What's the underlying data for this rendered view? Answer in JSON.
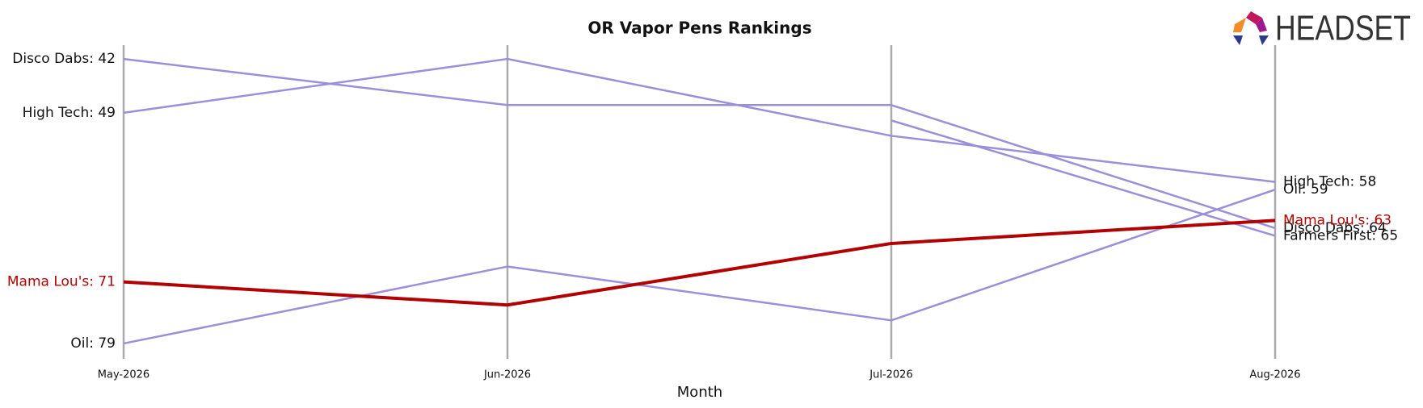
{
  "chart_data": {
    "type": "bump",
    "title": "OR Vapor Pens Rankings",
    "xlabel": "Month",
    "logo_text": "HEADSET",
    "categories": [
      "May-2026",
      "Jun-2026",
      "Jul-2026",
      "Aug-2026"
    ],
    "ylim": [
      40,
      81
    ],
    "inverted": true,
    "grid": true,
    "series": [
      {
        "name": "Disco Dabs",
        "color": "#9b8fd9",
        "values": [
          42,
          48,
          48,
          64
        ],
        "start_label": "Disco Dabs: 42",
        "end_label": "Disco Dabs: 64"
      },
      {
        "name": "High Tech",
        "color": "#9b8fd9",
        "values": [
          49,
          42,
          52,
          58
        ],
        "start_label": "High Tech: 49",
        "end_label": "High Tech: 58"
      },
      {
        "name": "Farmers First",
        "color": "#9b8fd9",
        "values": [
          null,
          null,
          50,
          65
        ],
        "end_label": "Farmers First: 65"
      },
      {
        "name": "Oil",
        "color": "#9b8fd9",
        "values": [
          79,
          69,
          76,
          59
        ],
        "start_label": "Oil: 79",
        "end_label": "Oil: 59"
      },
      {
        "name": "Mama Lou's",
        "color": "#b30000",
        "values": [
          71,
          74,
          66,
          63
        ],
        "start_label": "Mama Lou's: 71",
        "end_label": "Mama Lou's: 63",
        "highlight": true
      }
    ]
  }
}
